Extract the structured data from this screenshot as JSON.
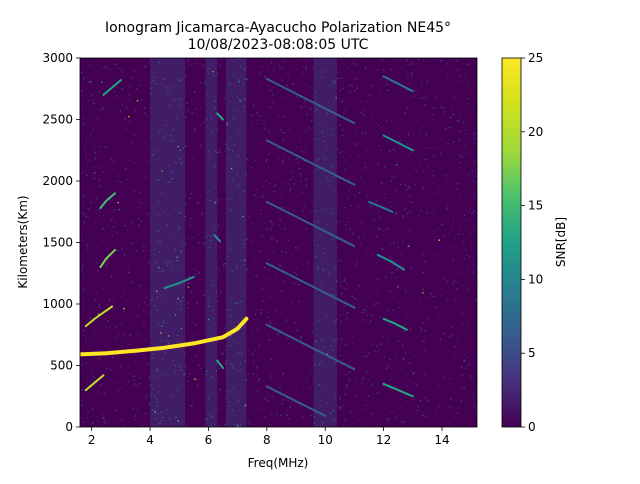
{
  "chart_data": {
    "type": "heatmap",
    "title": "Ionogram Jicamarca-Ayacucho Polarization NE45°",
    "subtitle": "10/08/2023-08:08:05 UTC",
    "xlabel": "Freq(MHz)",
    "ylabel": "Kilometers(Km)",
    "xlim": [
      1.6,
      15.2
    ],
    "ylim": [
      0,
      3000
    ],
    "xticks": [
      2,
      4,
      6,
      8,
      10,
      12,
      14
    ],
    "yticks": [
      0,
      500,
      1000,
      1500,
      2000,
      2500,
      3000
    ],
    "colorbar": {
      "label": "SNR[dB]",
      "range": [
        0,
        25
      ],
      "ticks": [
        0,
        5,
        10,
        15,
        20,
        25
      ],
      "colormap": "viridis"
    },
    "grid": false,
    "traces": [
      {
        "x": [
          1.6,
          2.5,
          3.5,
          4.5,
          5.5,
          6.5,
          7.0,
          7.3
        ],
        "y": [
          590,
          600,
          620,
          645,
          680,
          730,
          800,
          880
        ],
        "snr": 24
      },
      {
        "x": [
          1.8,
          2.1,
          2.4,
          2.7
        ],
        "y": [
          820,
          880,
          930,
          980
        ],
        "snr": 22
      },
      {
        "x": [
          1.8,
          2.1,
          2.4
        ],
        "y": [
          300,
          360,
          420
        ],
        "snr": 23
      },
      {
        "x": [
          2.3,
          2.5,
          2.8
        ],
        "y": [
          1300,
          1370,
          1440
        ],
        "snr": 20
      },
      {
        "x": [
          2.3,
          2.5,
          2.8
        ],
        "y": [
          1780,
          1840,
          1900
        ],
        "snr": 18
      },
      {
        "x": [
          2.4,
          2.7,
          3.0
        ],
        "y": [
          2700,
          2760,
          2820
        ],
        "snr": 15
      },
      {
        "x": [
          4.5,
          5.0,
          5.5
        ],
        "y": [
          1130,
          1170,
          1220
        ],
        "snr": 12
      },
      {
        "x": [
          6.3,
          6.5
        ],
        "y": [
          540,
          480
        ],
        "snr": 16
      },
      {
        "x": [
          6.3,
          6.5
        ],
        "y": [
          2550,
          2500
        ],
        "snr": 14
      },
      {
        "x": [
          6.2,
          6.4
        ],
        "y": [
          1560,
          1510
        ],
        "snr": 12
      },
      {
        "x": [
          12.0,
          12.4,
          12.8
        ],
        "y": [
          880,
          840,
          790
        ],
        "snr": 16
      },
      {
        "x": [
          12.0,
          12.5,
          13.0
        ],
        "y": [
          350,
          300,
          250
        ],
        "snr": 15
      },
      {
        "x": [
          11.8,
          12.3,
          12.7
        ],
        "y": [
          1400,
          1340,
          1280
        ],
        "snr": 13
      },
      {
        "x": [
          12.0,
          12.5,
          13.0
        ],
        "y": [
          2370,
          2310,
          2250
        ],
        "snr": 12
      },
      {
        "x": [
          12.0,
          12.5,
          13.0
        ],
        "y": [
          2850,
          2790,
          2730
        ],
        "snr": 11
      },
      {
        "x": [
          11.5,
          11.9,
          12.3
        ],
        "y": [
          1830,
          1790,
          1750
        ],
        "snr": 11
      },
      {
        "x": [
          8.0,
          9.5,
          11.0
        ],
        "y": [
          2830,
          2650,
          2470
        ],
        "snr": 8
      },
      {
        "x": [
          8.0,
          9.5,
          11.0
        ],
        "y": [
          2330,
          2150,
          1970
        ],
        "snr": 8
      },
      {
        "x": [
          8.0,
          9.5,
          11.0
        ],
        "y": [
          1830,
          1650,
          1470
        ],
        "snr": 8
      },
      {
        "x": [
          8.0,
          9.5,
          11.0
        ],
        "y": [
          1330,
          1150,
          970
        ],
        "snr": 8
      },
      {
        "x": [
          8.0,
          9.5,
          11.0
        ],
        "y": [
          830,
          650,
          470
        ],
        "snr": 8
      },
      {
        "x": [
          8.0,
          9.0,
          10.0
        ],
        "y": [
          330,
          210,
          90
        ],
        "snr": 8
      }
    ],
    "noise_bands_mhz": [
      [
        4.0,
        5.2
      ],
      [
        5.9,
        6.3
      ],
      [
        6.6,
        7.3
      ],
      [
        9.6,
        10.4
      ]
    ]
  }
}
